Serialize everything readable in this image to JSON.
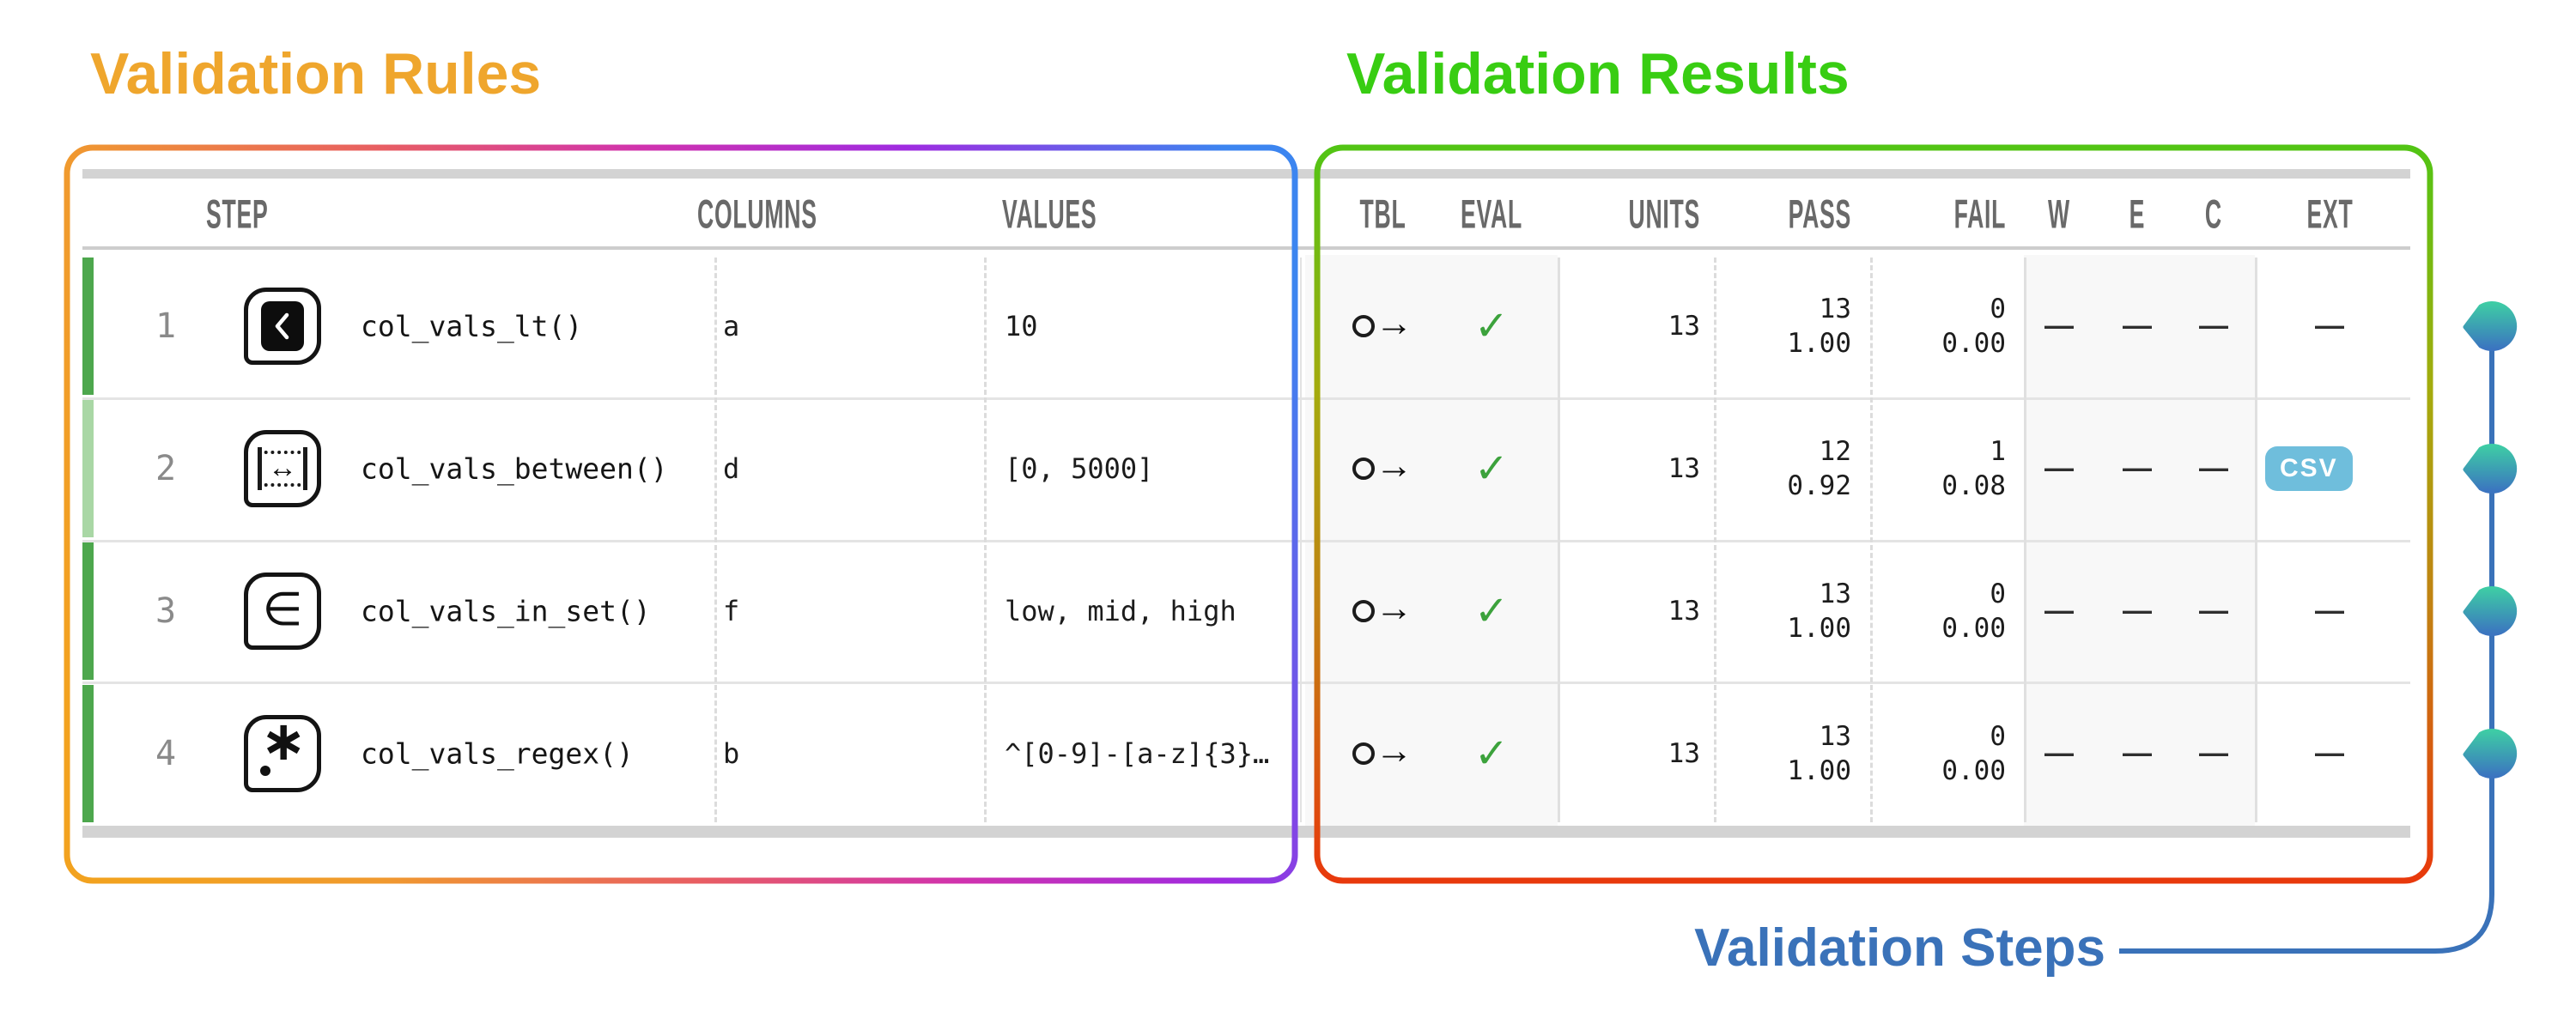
{
  "titles": {
    "rules": "Validation Rules",
    "results": "Validation Results",
    "steps": "Validation Steps"
  },
  "colors": {
    "rules_title": "#EFA62D",
    "results_title": "#38CD12",
    "steps_title": "#3A72B9",
    "strip_pass": "#4DA74D",
    "strip_partial": "#A9D7A5",
    "check_green": "#3CA23C",
    "csv_badge": "#6FBEDC",
    "connector_blue": "#3A72B9",
    "rules_border_gradient": [
      "#F2A21F",
      "#E85E62",
      "#D032AE",
      "#9F2BE0",
      "#3C85F0"
    ],
    "results_border_gradient": [
      "#52C414",
      "#A4AB0D",
      "#C28112",
      "#E8390C"
    ],
    "marker_gradient": [
      "#3ECCA5",
      "#3B74C0"
    ]
  },
  "header": {
    "step": "STEP",
    "columns": "COLUMNS",
    "values": "VALUES",
    "tbl": "TBL",
    "eval": "EVAL",
    "units": "UNITS",
    "pass": "PASS",
    "fail": "FAIL",
    "w": "W",
    "e": "E",
    "c": "C",
    "ext": "EXT"
  },
  "glyphs": {
    "tbl_circle_icon": "tbl-pipeline-icon",
    "tbl_arrow": "→",
    "eval_check": "✓",
    "dash": "—",
    "between_arrow": "↔",
    "in_set": "∈",
    "regex_asterisk": "∗"
  },
  "rows": [
    {
      "step": "1",
      "icon_type": "lt",
      "icon_name": "col-vals-lt-icon",
      "fn": "col_vals_lt()",
      "column": "a",
      "values": "10",
      "units": "13",
      "pass_n": "13",
      "pass_frac": "1.00",
      "fail_n": "0",
      "fail_frac": "0.00",
      "w": "—",
      "e": "—",
      "c": "—",
      "ext": "—",
      "ext_badge": null,
      "strip": "pass"
    },
    {
      "step": "2",
      "icon_type": "between",
      "icon_name": "col-vals-between-icon",
      "fn": "col_vals_between()",
      "column": "d",
      "values": "[0, 5000]",
      "units": "13",
      "pass_n": "12",
      "pass_frac": "0.92",
      "fail_n": "1",
      "fail_frac": "0.08",
      "w": "—",
      "e": "—",
      "c": "—",
      "ext": "CSV",
      "ext_badge": true,
      "strip": "partial"
    },
    {
      "step": "3",
      "icon_type": "in_set",
      "icon_name": "col-vals-in-set-icon",
      "fn": "col_vals_in_set()",
      "column": "f",
      "values": "low, mid, high",
      "units": "13",
      "pass_n": "13",
      "pass_frac": "1.00",
      "fail_n": "0",
      "fail_frac": "0.00",
      "w": "—",
      "e": "—",
      "c": "—",
      "ext": "—",
      "ext_badge": null,
      "strip": "pass"
    },
    {
      "step": "4",
      "icon_type": "regex",
      "icon_name": "col-vals-regex-icon",
      "fn": "col_vals_regex()",
      "column": "b",
      "values": "^[0-9]-[a-z]{3}…",
      "units": "13",
      "pass_n": "13",
      "pass_frac": "1.00",
      "fail_n": "0",
      "fail_frac": "0.00",
      "w": "—",
      "e": "—",
      "c": "—",
      "ext": "—",
      "ext_badge": null,
      "strip": "pass"
    }
  ]
}
